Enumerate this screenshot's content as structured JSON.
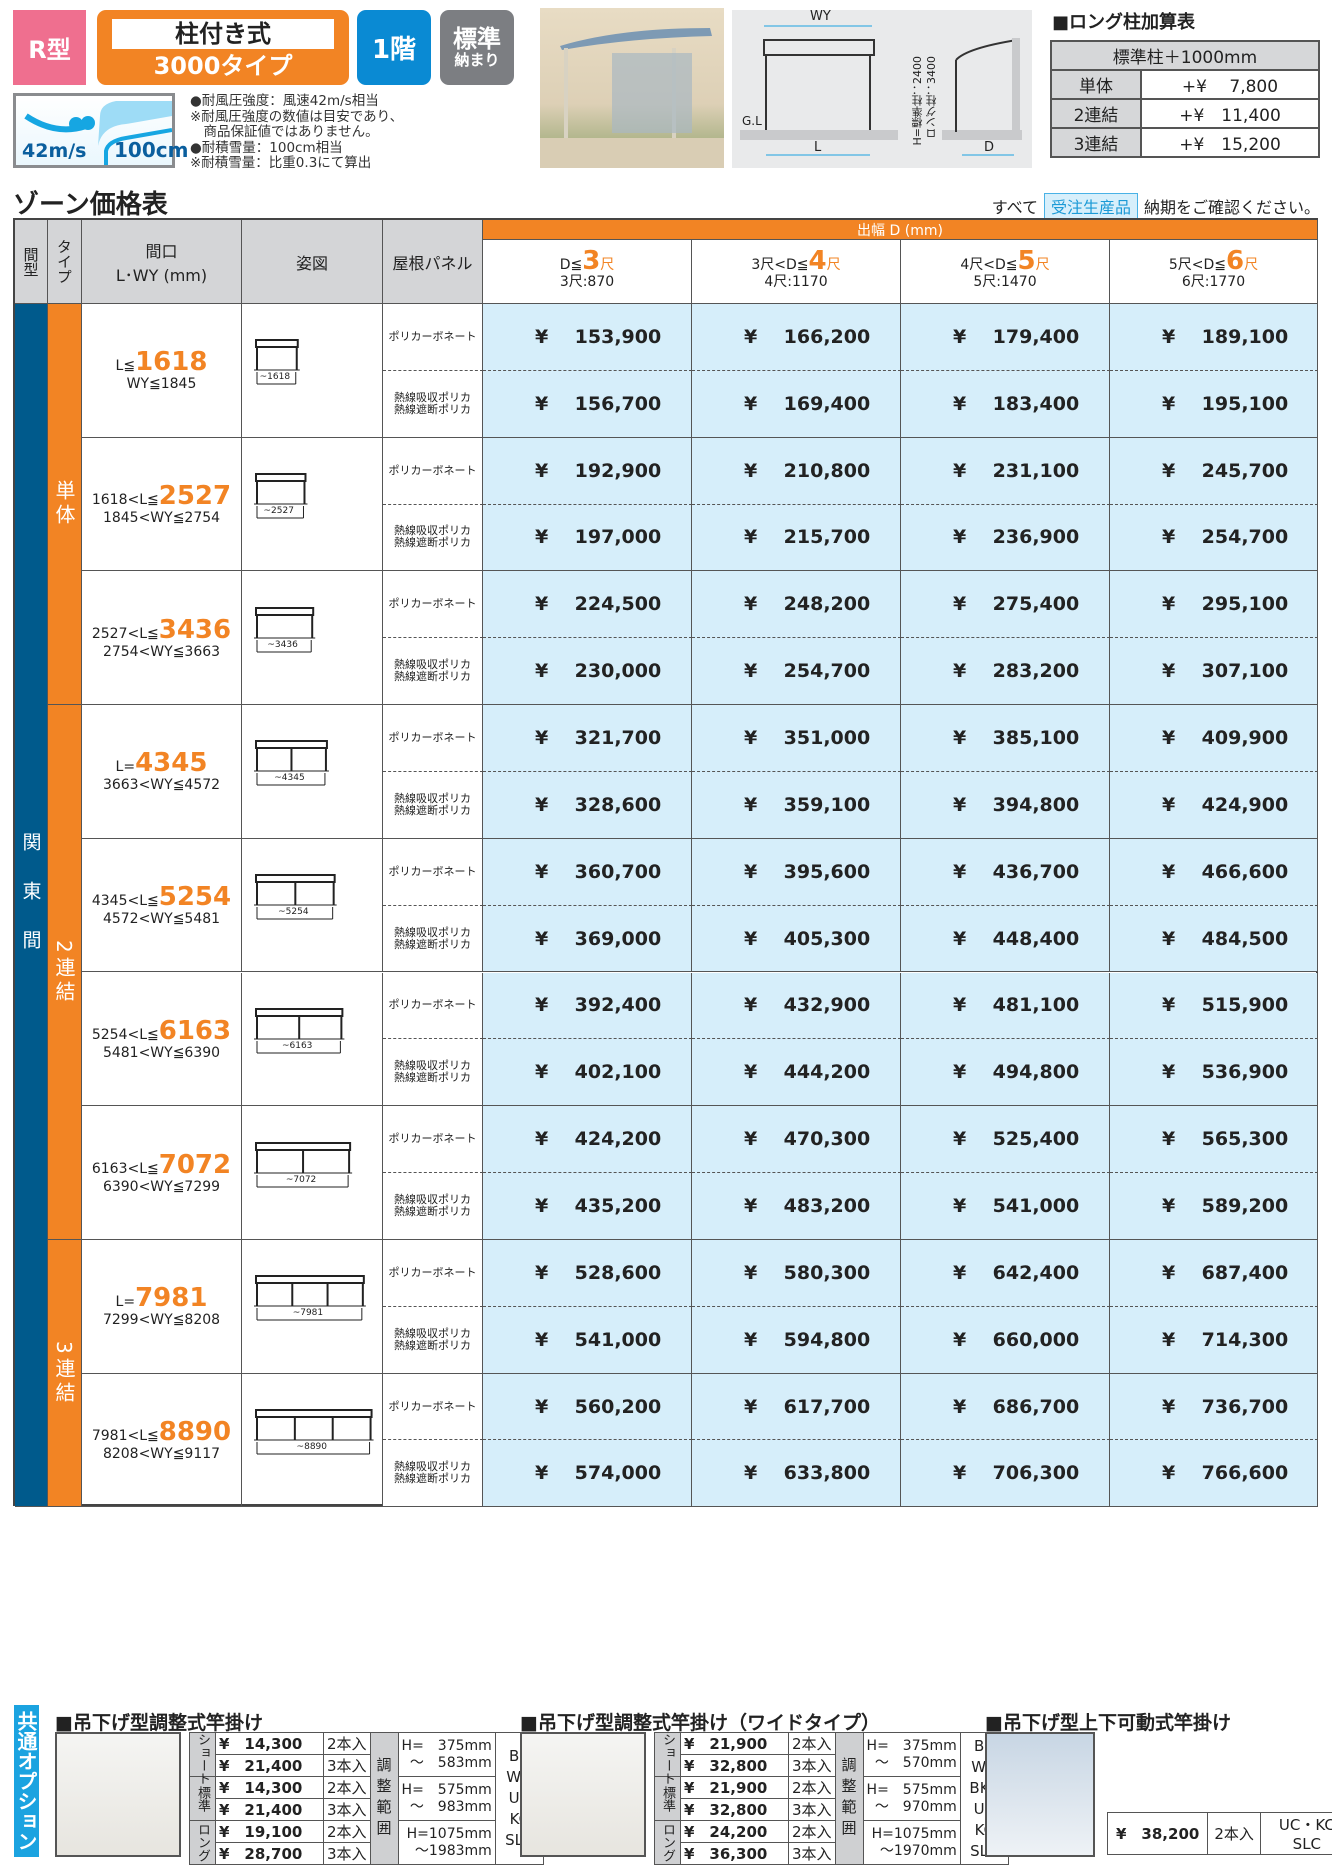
{
  "header": {
    "type_badge": "R型",
    "style_line1": "柱付き式",
    "style_line2": "3000タイプ",
    "floor": "1階",
    "std_line1": "標準",
    "std_line2": "納まり",
    "wind_value": "42m/s",
    "snow_value": "100cm",
    "notes": [
      "●耐風圧強度：風速42m/s相当",
      "※耐風圧強度の数値は目安であり、",
      "　商品保証値ではありません。",
      "●耐積雪量：100cm相当",
      "※耐積雪量：比重0.3にて算出"
    ],
    "drawing": {
      "wy": "WY",
      "l": "L",
      "d": "D",
      "gl": "G.L",
      "h1": "H=標準柱：2400",
      "h2": "ロング柱：3400"
    }
  },
  "long_table": {
    "title": "■ロング柱加算表",
    "header": "標準柱＋1000mm",
    "rows": [
      {
        "label": "単体",
        "value": "+¥　 7,800"
      },
      {
        "label": "2連結",
        "value": "+¥　11,400"
      },
      {
        "label": "3連結",
        "value": "+¥　15,200"
      }
    ]
  },
  "section_title": "ゾーン価格表",
  "order_note": {
    "prefix": "すべて",
    "badge": "受注生産品",
    "suffix": "納期をご確認ください。"
  },
  "table": {
    "headers": {
      "span": "間型",
      "type": "タイプ",
      "size_l1": "間口",
      "size_l2": "L･WY (mm)",
      "figure": "姿図",
      "panel": "屋根パネル",
      "depth": "出幅 D (mm)"
    },
    "depth_cols": [
      {
        "pre": "D≦",
        "num": "3",
        "unit": "尺",
        "sub": "3尺:870"
      },
      {
        "pre": "3尺<D≦",
        "num": "4",
        "unit": "尺",
        "sub": "4尺:1170"
      },
      {
        "pre": "4尺<D≦",
        "num": "5",
        "unit": "尺",
        "sub": "5尺:1470"
      },
      {
        "pre": "5尺<D≦",
        "num": "6",
        "unit": "尺",
        "sub": "6尺:1770"
      }
    ],
    "span_label": "関東間",
    "types": [
      {
        "label": "単体",
        "rows": 3
      },
      {
        "label": "2連結",
        "rows": 4
      },
      {
        "label": "3連結",
        "rows": 2
      }
    ],
    "panels": [
      "ポリカーボネート",
      "熱線吸収ポリカ\n熱線遮断ポリカ"
    ],
    "rows": [
      {
        "l_pre": "L≦",
        "l_num": "1618",
        "wy": "WY≦1845",
        "fig": "~1618",
        "bays": 1,
        "prices": [
          [
            "153,900",
            "166,200",
            "179,400",
            "189,100"
          ],
          [
            "156,700",
            "169,400",
            "183,400",
            "195,100"
          ]
        ]
      },
      {
        "l_pre": "1618<L≦",
        "l_num": "2527",
        "wy": "1845<WY≦2754",
        "fig": "~2527",
        "bays": 1,
        "prices": [
          [
            "192,900",
            "210,800",
            "231,100",
            "245,700"
          ],
          [
            "197,000",
            "215,700",
            "236,900",
            "254,700"
          ]
        ]
      },
      {
        "l_pre": "2527<L≦",
        "l_num": "3436",
        "wy": "2754<WY≦3663",
        "fig": "~3436",
        "bays": 1,
        "prices": [
          [
            "224,500",
            "248,200",
            "275,400",
            "295,100"
          ],
          [
            "230,000",
            "254,700",
            "283,200",
            "307,100"
          ]
        ]
      },
      {
        "l_pre": "L=",
        "l_num": "4345",
        "wy": "3663<WY≦4572",
        "fig": "~4345",
        "bays": 2,
        "prices": [
          [
            "321,700",
            "351,000",
            "385,100",
            "409,900"
          ],
          [
            "328,600",
            "359,100",
            "394,800",
            "424,900"
          ]
        ]
      },
      {
        "l_pre": "4345<L≦",
        "l_num": "5254",
        "wy": "4572<WY≦5481",
        "fig": "~5254",
        "bays": 2,
        "prices": [
          [
            "360,700",
            "395,600",
            "436,700",
            "466,600"
          ],
          [
            "369,000",
            "405,300",
            "448,400",
            "484,500"
          ]
        ]
      },
      {
        "l_pre": "5254<L≦",
        "l_num": "6163",
        "wy": "5481<WY≦6390",
        "fig": "~6163",
        "bays": 2,
        "prices": [
          [
            "392,400",
            "432,900",
            "481,100",
            "515,900"
          ],
          [
            "402,100",
            "444,200",
            "494,800",
            "536,900"
          ]
        ]
      },
      {
        "l_pre": "6163<L≦",
        "l_num": "7072",
        "wy": "6390<WY≦7299",
        "fig": "~7072",
        "bays": 2,
        "prices": [
          [
            "424,200",
            "470,300",
            "525,400",
            "565,300"
          ],
          [
            "435,200",
            "483,200",
            "541,000",
            "589,200"
          ]
        ]
      },
      {
        "l_pre": "L=",
        "l_num": "7981",
        "wy": "7299<WY≦8208",
        "fig": "~7981",
        "bays": 3,
        "prices": [
          [
            "528,600",
            "580,300",
            "642,400",
            "687,400"
          ],
          [
            "541,000",
            "594,800",
            "660,000",
            "714,300"
          ]
        ]
      },
      {
        "l_pre": "7981<L≦",
        "l_num": "8890",
        "wy": "8208<WY≦9117",
        "fig": "~8890",
        "bays": 3,
        "prices": [
          [
            "560,200",
            "617,700",
            "686,700",
            "736,700"
          ],
          [
            "574,000",
            "633,800",
            "706,300",
            "766,600"
          ]
        ]
      }
    ]
  },
  "options": {
    "label": "共通オプション",
    "items": [
      {
        "title": "■吊下げ型調整式竿掛け",
        "range_label": "調整範囲",
        "colors": "BR\nWH\nUC\nKC\nSLC",
        "groups": [
          {
            "name": "ショート",
            "rows": [
              [
                "¥　14,300",
                "2本入"
              ],
              [
                "¥　21,400",
                "3本入"
              ]
            ],
            "range": "H=　375mm\n～　583mm"
          },
          {
            "name": "標準",
            "rows": [
              [
                "¥　14,300",
                "2本入"
              ],
              [
                "¥　21,400",
                "3本入"
              ]
            ],
            "range": "H=　575mm\n～　983mm"
          },
          {
            "name": "ロング",
            "rows": [
              [
                "¥　19,100",
                "2本入"
              ],
              [
                "¥　28,700",
                "3本入"
              ]
            ],
            "range": "H=1075mm\n～1983mm"
          }
        ]
      },
      {
        "title": "■吊下げ型調整式竿掛け（ワイドタイプ）",
        "range_label": "調整範囲",
        "colors": "BR\nWH\nBKC\nUC\nKC\nSLC",
        "groups": [
          {
            "name": "ショート",
            "rows": [
              [
                "¥　21,900",
                "2本入"
              ],
              [
                "¥　32,800",
                "3本入"
              ]
            ],
            "range": "H=　375mm\n～　570mm"
          },
          {
            "name": "標準",
            "rows": [
              [
                "¥　21,900",
                "2本入"
              ],
              [
                "¥　32,800",
                "3本入"
              ]
            ],
            "range": "H=　575mm\n～　970mm"
          },
          {
            "name": "ロング",
            "rows": [
              [
                "¥　24,200",
                "2本入"
              ],
              [
                "¥　36,300",
                "3本入"
              ]
            ],
            "range": "H=1075mm\n～1970mm"
          }
        ]
      },
      {
        "title": "■吊下げ型上下可動式竿掛け",
        "price": "¥　38,200",
        "qty": "2本入",
        "colors": "UC・KC\nSLC"
      }
    ]
  },
  "colors": {
    "orange": "#f28424",
    "blue": "#005a8c",
    "price_bg": "#d6eefa",
    "pink": "#ef6f8f",
    "cyan": "#1ba3e0"
  }
}
